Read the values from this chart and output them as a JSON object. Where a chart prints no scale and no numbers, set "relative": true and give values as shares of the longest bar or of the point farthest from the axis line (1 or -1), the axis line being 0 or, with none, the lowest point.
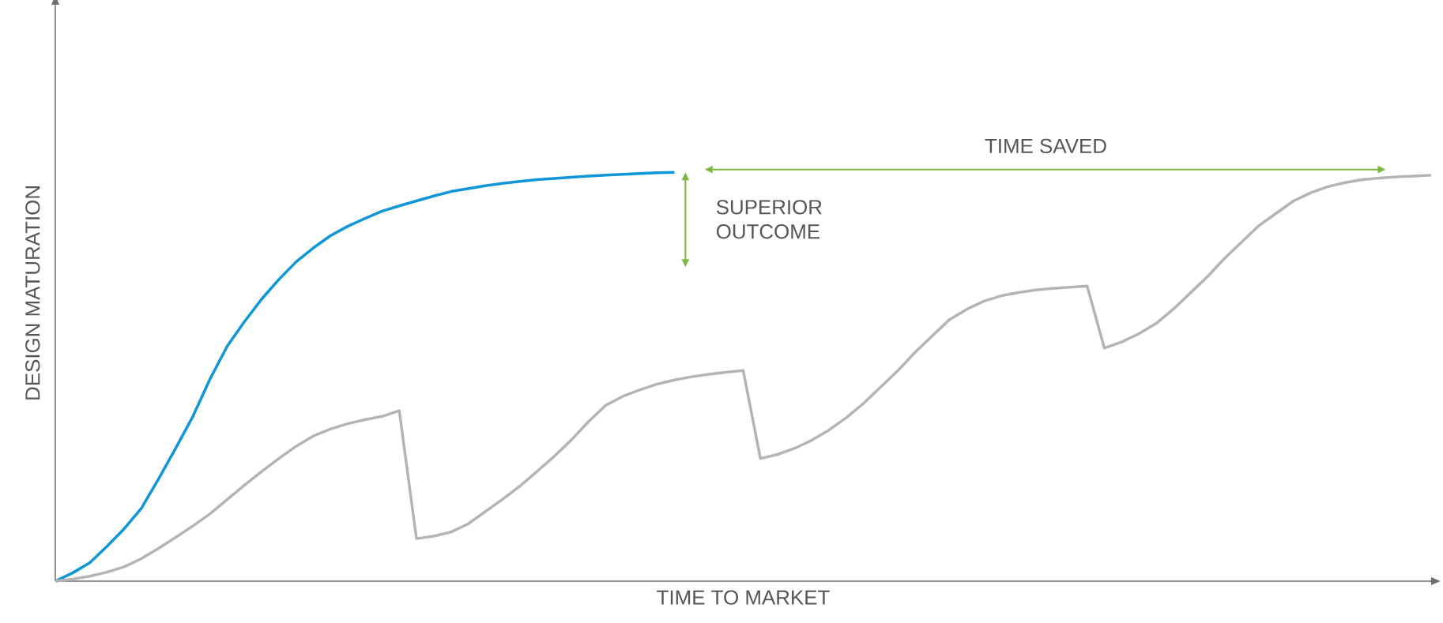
{
  "chart_data": {
    "type": "line",
    "relative": true,
    "xlabel": "TIME TO MARKET",
    "ylabel": "DESIGN MATURATION",
    "annotations": [
      "TIME SAVED",
      "SUPERIOR OUTCOME"
    ],
    "marker": "none",
    "line_style": "solid",
    "categories": [
      null,
      null,
      null,
      null,
      null,
      null,
      null,
      null,
      null,
      null,
      null,
      null,
      null,
      null,
      null,
      null,
      null,
      null,
      null,
      null,
      null,
      null,
      null,
      null,
      null,
      null,
      null,
      null,
      null,
      null,
      null,
      null,
      null,
      null,
      null,
      null,
      null,
      null,
      null,
      null,
      null,
      null,
      null,
      null,
      null,
      null,
      null,
      null,
      null,
      null,
      null,
      null,
      null,
      null,
      null,
      null,
      null,
      null,
      null,
      null,
      null,
      null,
      null,
      null,
      null,
      null,
      null,
      null,
      null,
      null,
      null,
      null,
      null,
      null,
      null,
      null,
      null,
      null,
      null,
      null,
      null
    ],
    "series": [
      {
        "color": "#0f96d8",
        "values": [
          0,
          0.02,
          0.045,
          0.085,
          0.128,
          0.178,
          0.25,
          0.325,
          0.403,
          0.495,
          0.575,
          0.635,
          0.69,
          0.738,
          0.781,
          0.815,
          0.845,
          0.868,
          0.887,
          0.905,
          0.918,
          0.93,
          0.942,
          0.953,
          0.96,
          0.967,
          0.973,
          0.978,
          0.982,
          0.985,
          0.988,
          0.991,
          0.993,
          0.995,
          0.997,
          0.999,
          1.0,
          null,
          null,
          null,
          null,
          null,
          null,
          null,
          null,
          null,
          null,
          null,
          null,
          null,
          null,
          null,
          null,
          null,
          null,
          null,
          null,
          null,
          null,
          null,
          null,
          null,
          null,
          null,
          null,
          null,
          null,
          null,
          null,
          null,
          null,
          null,
          null,
          null,
          null,
          null,
          null,
          null,
          null,
          null,
          null
        ]
      },
      {
        "color": "#b4b4b4",
        "values": [
          0,
          0.005,
          0.012,
          0.022,
          0.035,
          0.055,
          0.08,
          0.107,
          0.135,
          0.165,
          0.2,
          0.235,
          0.268,
          0.3,
          0.33,
          0.355,
          0.372,
          0.385,
          0.395,
          0.403,
          0.417,
          0.104,
          0.11,
          0.12,
          0.14,
          0.17,
          0.2,
          0.232,
          0.268,
          0.305,
          0.345,
          0.39,
          0.43,
          0.452,
          0.468,
          0.482,
          0.492,
          0.5,
          0.506,
          0.511,
          0.515,
          0.3,
          0.31,
          0.325,
          0.345,
          0.37,
          0.4,
          0.435,
          0.475,
          0.515,
          0.56,
          0.6,
          0.64,
          0.665,
          0.685,
          0.698,
          0.706,
          0.712,
          0.716,
          0.719,
          0.722,
          0.57,
          0.585,
          0.605,
          0.63,
          0.665,
          0.705,
          0.745,
          0.79,
          0.83,
          0.87,
          0.9,
          0.93,
          0.95,
          0.965,
          0.975,
          0.982,
          0.986,
          0.989,
          0.991,
          0.993
        ]
      }
    ]
  }
}
